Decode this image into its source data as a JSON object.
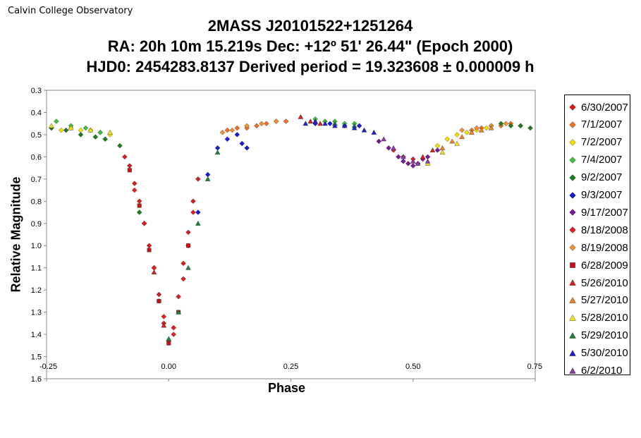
{
  "header": {
    "credit": "Calvin College Observatory",
    "title_lines": [
      "2MASS J20101522+1251264",
      "RA: 20h 10m 15.219s   Dec: +12º 51' 26.44\"  (Epoch 2000)",
      "HJD0:   2454283.8137   Derived period =  19.323608 ± 0.000009 h"
    ]
  },
  "chart_data": {
    "type": "scatter",
    "title": "2MASS J20101522+1251264",
    "xlabel": "Phase",
    "ylabel": "Relative Magnitude",
    "xlim": [
      -0.25,
      0.75
    ],
    "ylim": [
      0.3,
      1.6
    ],
    "y_inverted": true,
    "x_ticks": [
      "-0.25",
      "0.00",
      "0.25",
      "0.50",
      "0.75"
    ],
    "x_tick_values": [
      -0.25,
      0,
      0.25,
      0.5,
      0.75
    ],
    "y_ticks": [
      "0.3",
      "0.4",
      "0.5",
      "0.6",
      "0.7",
      "0.8",
      "0.9",
      "1.0",
      "1.1",
      "1.2",
      "1.3",
      "1.4",
      "1.5",
      "1.6"
    ],
    "y_tick_values": [
      0.3,
      0.4,
      0.5,
      0.6,
      0.7,
      0.8,
      0.9,
      1.0,
      1.1,
      1.2,
      1.3,
      1.4,
      1.5,
      1.6
    ],
    "grid": false,
    "legend_position": "right",
    "series": [
      {
        "name": "6/30/2007",
        "marker": "diamond",
        "color": "#d02020",
        "x": [
          -0.08,
          -0.07,
          -0.06,
          -0.05,
          -0.04,
          -0.03,
          -0.02,
          -0.01,
          0.0,
          0.01,
          0.02,
          0.03,
          0.04,
          0.05,
          0.06
        ],
        "y": [
          0.64,
          0.72,
          0.8,
          0.9,
          1.0,
          1.1,
          1.22,
          1.35,
          1.43,
          1.37,
          1.23,
          1.08,
          0.94,
          0.8,
          0.7
        ]
      },
      {
        "name": "7/1/2007",
        "marker": "diamond",
        "color": "#f07020",
        "x": [
          0.12,
          0.14,
          0.16,
          0.18,
          0.2,
          0.22,
          0.24,
          0.62,
          0.64,
          0.66,
          0.68,
          0.7,
          0.72
        ],
        "y": [
          0.48,
          0.47,
          0.47,
          0.46,
          0.45,
          0.44,
          0.44,
          0.48,
          0.47,
          0.46,
          0.46,
          0.45,
          0.46
        ]
      },
      {
        "name": "7/2/2007",
        "marker": "diamond",
        "color": "#f0e000",
        "x": [
          -0.24,
          -0.22,
          -0.2,
          -0.18,
          -0.16,
          -0.14,
          -0.12,
          0.55,
          0.57,
          0.59,
          0.61,
          0.63,
          0.65
        ],
        "y": [
          0.47,
          0.48,
          0.47,
          0.48,
          0.48,
          0.49,
          0.5,
          0.55,
          0.52,
          0.5,
          0.49,
          0.48,
          0.47
        ]
      },
      {
        "name": "7/4/2007",
        "marker": "diamond",
        "color": "#40c040",
        "x": [
          -0.23,
          -0.2,
          -0.17,
          -0.14,
          0.3,
          0.32,
          0.34,
          0.36,
          0.38
        ],
        "y": [
          0.44,
          0.46,
          0.47,
          0.49,
          0.43,
          0.44,
          0.44,
          0.45,
          0.45
        ]
      },
      {
        "name": "9/2/2007",
        "marker": "diamond",
        "color": "#207a20",
        "x": [
          -0.24,
          -0.21,
          -0.18,
          -0.15,
          -0.13,
          -0.1,
          -0.06,
          -0.02,
          0.68,
          0.7,
          0.72,
          0.74
        ],
        "y": [
          0.47,
          0.48,
          0.5,
          0.51,
          0.52,
          0.55,
          0.85,
          1.25,
          0.45,
          0.46,
          0.46,
          0.47
        ]
      },
      {
        "name": "9/3/2007",
        "marker": "diamond",
        "color": "#1a1ad0",
        "x": [
          0.04,
          0.06,
          0.08,
          0.1,
          0.12,
          0.14,
          0.15,
          0.16,
          0.3,
          0.33,
          0.36,
          0.39
        ],
        "y": [
          1.0,
          0.85,
          0.68,
          0.56,
          0.52,
          0.5,
          0.54,
          0.56,
          0.45,
          0.45,
          0.46,
          0.46
        ]
      },
      {
        "name": "9/17/2007",
        "marker": "diamond",
        "color": "#7a1a9a",
        "x": [
          0.43,
          0.45,
          0.47,
          0.48,
          0.49,
          0.5,
          0.51,
          0.52,
          0.53,
          0.55
        ],
        "y": [
          0.53,
          0.56,
          0.6,
          0.62,
          0.63,
          0.64,
          0.63,
          0.61,
          0.6,
          0.57
        ]
      },
      {
        "name": "8/18/2008",
        "marker": "diamond",
        "color": "#e02020",
        "x": [
          -0.09,
          -0.07,
          -0.05,
          -0.03,
          -0.01,
          0.01,
          0.03,
          0.05,
          0.46,
          0.48,
          0.5
        ],
        "y": [
          0.6,
          0.75,
          0.9,
          1.1,
          1.32,
          1.4,
          1.15,
          0.85,
          0.57,
          0.6,
          0.61
        ]
      },
      {
        "name": "8/19/2008",
        "marker": "diamond",
        "color": "#f09030",
        "x": [
          0.11,
          0.13,
          0.16,
          0.19,
          0.22,
          0.6,
          0.63,
          0.66,
          0.69
        ],
        "y": [
          0.49,
          0.48,
          0.46,
          0.45,
          0.44,
          0.48,
          0.47,
          0.46,
          0.45
        ]
      },
      {
        "name": "6/28/2009",
        "marker": "square",
        "color": "#d01010",
        "x": [
          -0.08,
          -0.06,
          -0.04,
          -0.02,
          0.0,
          0.02,
          0.04
        ],
        "y": [
          0.66,
          0.82,
          1.02,
          1.25,
          1.44,
          1.3,
          1.0
        ]
      },
      {
        "name": "5/26/2010",
        "marker": "triangle",
        "color": "#d02020",
        "x": [
          0.27,
          0.29,
          0.31,
          -0.03,
          -0.01,
          0.52,
          0.54
        ],
        "y": [
          0.42,
          0.44,
          0.45,
          1.12,
          1.36,
          0.6,
          0.57
        ]
      },
      {
        "name": "5/27/2010",
        "marker": "triangle",
        "color": "#f08020",
        "x": [
          0.56,
          0.58,
          0.6,
          0.62,
          0.64,
          0.66
        ],
        "y": [
          0.56,
          0.53,
          0.51,
          0.49,
          0.48,
          0.47
        ]
      },
      {
        "name": "5/28/2010",
        "marker": "triangle",
        "color": "#f0e020",
        "x": [
          -0.24,
          -0.2,
          -0.16,
          -0.12,
          0.53,
          0.56,
          0.59
        ],
        "y": [
          0.46,
          0.47,
          0.48,
          0.49,
          0.63,
          0.58,
          0.54
        ]
      },
      {
        "name": "5/29/2010",
        "marker": "triangle",
        "color": "#208040",
        "x": [
          0.0,
          0.02,
          0.04,
          0.06,
          0.08,
          0.1,
          0.3,
          0.34,
          0.38
        ],
        "y": [
          1.42,
          1.3,
          1.1,
          0.9,
          0.7,
          0.58,
          0.44,
          0.45,
          0.46
        ]
      },
      {
        "name": "5/30/2010",
        "marker": "triangle",
        "color": "#2020d0",
        "x": [
          0.28,
          0.3,
          0.32,
          0.34,
          0.36,
          0.38,
          0.4,
          0.42
        ],
        "y": [
          0.45,
          0.44,
          0.45,
          0.46,
          0.46,
          0.47,
          0.48,
          0.49
        ]
      },
      {
        "name": "6/2/2010",
        "marker": "triangle",
        "color": "#8a3aa0",
        "x": [
          0.44,
          0.46,
          0.48,
          0.5,
          0.51,
          0.53
        ],
        "y": [
          0.52,
          0.56,
          0.6,
          0.62,
          0.63,
          0.62
        ]
      }
    ]
  }
}
